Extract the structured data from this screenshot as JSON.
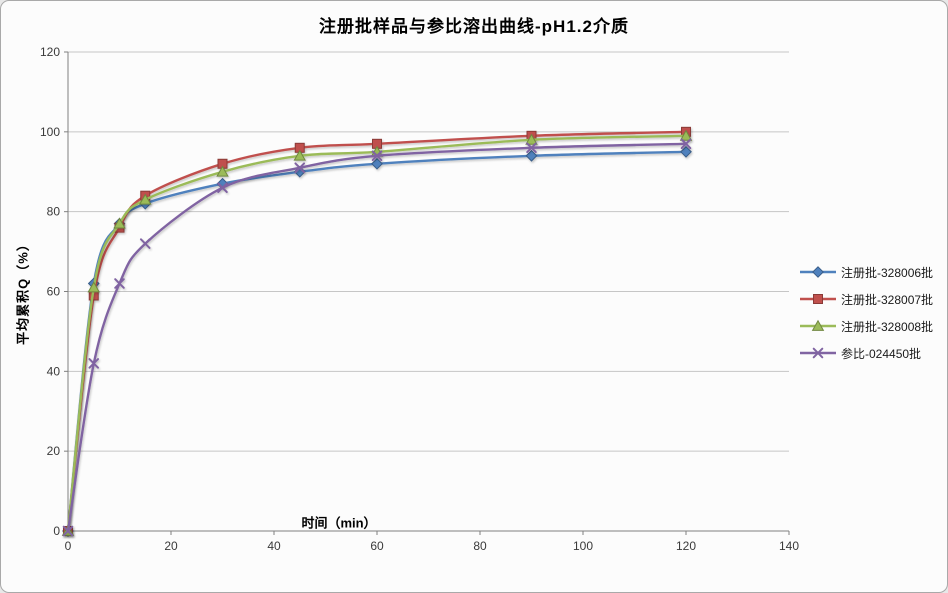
{
  "chart_data": {
    "type": "line",
    "title": "注册批样品与参比溶出曲线-pH1.2介质",
    "xlabel": "时间（min）",
    "ylabel": "平均累积Q（%）",
    "x": [
      0,
      5,
      10,
      15,
      30,
      45,
      60,
      90,
      120
    ],
    "series": [
      {
        "name": "注册批-328006批",
        "color": "#4F81BD",
        "marker": "diamond",
        "values": [
          0,
          62,
          77,
          82,
          87,
          90,
          92,
          94,
          95
        ]
      },
      {
        "name": "注册批-328007批",
        "color": "#C0504D",
        "marker": "square",
        "values": [
          0,
          59,
          76,
          84,
          92,
          96,
          97,
          99,
          100
        ]
      },
      {
        "name": "注册批-328008批",
        "color": "#9BBB59",
        "marker": "triangle",
        "values": [
          0,
          61,
          77,
          83,
          90,
          94,
          95,
          98,
          99
        ]
      },
      {
        "name": "参比-024450批",
        "color": "#8064A2",
        "marker": "x",
        "values": [
          0,
          42,
          62,
          72,
          86,
          91,
          94,
          96,
          97
        ]
      }
    ],
    "xlim": [
      0,
      140
    ],
    "ylim": [
      0,
      120
    ],
    "x_ticks": [
      0,
      20,
      40,
      60,
      80,
      100,
      120,
      140
    ],
    "y_ticks": [
      0,
      20,
      40,
      60,
      80,
      100,
      120
    ],
    "grid": true,
    "smooth": true,
    "legend_position": "right"
  },
  "styles": {
    "grid_color": "#C6C6C6",
    "axis_color": "#808080",
    "tick_label_color": "#3A3A3A",
    "frame_border_color": "#A9A9A9",
    "background": "#FCFCFC"
  }
}
